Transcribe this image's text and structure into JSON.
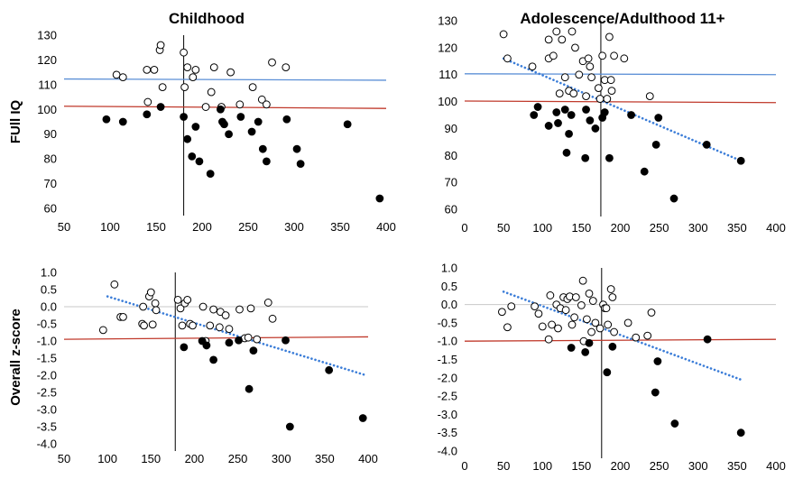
{
  "chart_data": [
    {
      "type": "scatter",
      "title": "Childhood",
      "xlabel": "",
      "ylabel": "FUll IQ",
      "xlim": [
        50,
        400
      ],
      "ylim": [
        60,
        130
      ],
      "xticks": [
        50,
        100,
        150,
        200,
        250,
        300,
        350,
        400
      ],
      "yticks": [
        60,
        70,
        80,
        90,
        100,
        110,
        120,
        130
      ],
      "vline_x": 180,
      "ref_lines": [
        {
          "color": "#5b8fd6",
          "x": [
            50,
            400
          ],
          "y": [
            112.3,
            111.8
          ]
        },
        {
          "color": "#c0392b",
          "x": [
            50,
            400
          ],
          "y": [
            101.3,
            100.4
          ]
        }
      ],
      "series": [
        {
          "marker": "open",
          "points": [
            [
              107,
              114
            ],
            [
              114,
              113
            ],
            [
              140,
              116
            ],
            [
              148,
              116
            ],
            [
              154,
              124
            ],
            [
              155,
              126
            ],
            [
              157,
              109
            ],
            [
              141,
              103
            ],
            [
              180,
              123
            ],
            [
              181,
              109
            ],
            [
              184,
              117
            ],
            [
              190,
              113
            ],
            [
              193,
              116
            ],
            [
              204,
              101
            ],
            [
              210,
              107
            ],
            [
              213,
              117
            ],
            [
              221,
              101
            ],
            [
              231,
              115
            ],
            [
              241,
              102
            ],
            [
              255,
              109
            ],
            [
              265,
              104
            ],
            [
              270,
              102
            ],
            [
              276,
              119
            ],
            [
              291,
              117
            ]
          ]
        },
        {
          "marker": "filled",
          "points": [
            [
              96,
              96
            ],
            [
              114,
              95
            ],
            [
              140,
              98
            ],
            [
              155,
              101
            ],
            [
              180,
              97
            ],
            [
              184,
              88
            ],
            [
              189,
              81
            ],
            [
              193,
              93
            ],
            [
              197,
              79
            ],
            [
              209,
              74
            ],
            [
              220,
              100
            ],
            [
              222,
              95
            ],
            [
              224,
              94
            ],
            [
              229,
              90
            ],
            [
              242,
              97
            ],
            [
              254,
              91
            ],
            [
              261,
              95
            ],
            [
              266,
              84
            ],
            [
              270,
              79
            ],
            [
              292,
              96
            ],
            [
              303,
              84
            ],
            [
              307,
              78
            ],
            [
              358,
              94
            ],
            [
              393,
              64
            ]
          ]
        }
      ]
    },
    {
      "type": "scatter",
      "title": "Adolescence/Adulthood 11+",
      "xlabel": "",
      "ylabel": "",
      "xlim": [
        0,
        400
      ],
      "ylim": [
        60,
        130
      ],
      "xticks": [
        0,
        50,
        100,
        150,
        200,
        250,
        300,
        350,
        400
      ],
      "yticks": [
        60,
        70,
        80,
        90,
        100,
        110,
        120,
        130
      ],
      "vline_x": 175,
      "ref_lines": [
        {
          "color": "#5b8fd6",
          "x": [
            0,
            400
          ],
          "y": [
            110.3,
            110.0
          ]
        },
        {
          "color": "#c0392b",
          "x": [
            0,
            400
          ],
          "y": [
            100.2,
            99.6
          ]
        },
        {
          "color": "#3b7dd8",
          "dotted": true,
          "x": [
            50,
            355
          ],
          "y": [
            116,
            78
          ]
        }
      ],
      "series": [
        {
          "marker": "open",
          "points": [
            [
              50,
              125
            ],
            [
              55,
              116
            ],
            [
              87,
              113
            ],
            [
              108,
              123
            ],
            [
              108,
              116
            ],
            [
              114,
              117
            ],
            [
              118,
              126
            ],
            [
              122,
              103
            ],
            [
              125,
              123
            ],
            [
              129,
              109
            ],
            [
              134,
              104
            ],
            [
              138,
              126
            ],
            [
              140,
              103
            ],
            [
              142,
              120
            ],
            [
              147,
              110
            ],
            [
              152,
              115
            ],
            [
              156,
              102
            ],
            [
              159,
              116
            ],
            [
              161,
              113
            ],
            [
              163,
              109
            ],
            [
              172,
              105
            ],
            [
              174,
              101
            ],
            [
              177,
              117
            ],
            [
              180,
              108
            ],
            [
              183,
              101
            ],
            [
              186,
              124
            ],
            [
              188,
              108
            ],
            [
              189,
              104
            ],
            [
              192,
              117
            ],
            [
              205,
              116
            ],
            [
              238,
              102
            ]
          ]
        },
        {
          "marker": "filled",
          "points": [
            [
              89,
              95
            ],
            [
              94,
              98
            ],
            [
              108,
              91
            ],
            [
              118,
              96
            ],
            [
              120,
              92
            ],
            [
              129,
              97
            ],
            [
              131,
              81
            ],
            [
              134,
              88
            ],
            [
              137,
              95
            ],
            [
              155,
              79
            ],
            [
              156,
              97
            ],
            [
              161,
              93
            ],
            [
              168,
              90
            ],
            [
              177,
              94
            ],
            [
              180,
              96
            ],
            [
              186,
              79
            ],
            [
              214,
              95
            ],
            [
              231,
              74
            ],
            [
              246,
              84
            ],
            [
              249,
              94
            ],
            [
              269,
              64
            ],
            [
              311,
              84
            ],
            [
              355,
              78
            ]
          ]
        }
      ]
    },
    {
      "type": "scatter",
      "title": "",
      "xlabel": "",
      "ylabel": "Overall z-score",
      "xlim": [
        50,
        400
      ],
      "ylim": [
        -4.0,
        1.0
      ],
      "xticks": [
        50,
        100,
        150,
        200,
        250,
        300,
        350,
        400
      ],
      "yticks": [
        "1.0",
        "0.5",
        "0.0",
        "-0.5",
        "-1.0",
        "-1.5",
        "-2.0",
        "-2.5",
        "-3.0",
        "-3.5",
        "-4.0"
      ],
      "vline_x": 178,
      "ref_lines": [
        {
          "color": "#c0392b",
          "x": [
            50,
            400
          ],
          "y": [
            -0.95,
            -0.88
          ]
        },
        {
          "color": "#3b7dd8",
          "dotted": true,
          "x": [
            100,
            395
          ],
          "y": [
            0.3,
            -1.98
          ]
        }
      ],
      "series": [
        {
          "marker": "open",
          "points": [
            [
              95,
              -0.68
            ],
            [
              108,
              0.65
            ],
            [
              115,
              -0.3
            ],
            [
              118,
              -0.3
            ],
            [
              141,
              0.0
            ],
            [
              140,
              -0.5
            ],
            [
              142,
              -0.55
            ],
            [
              148,
              0.3
            ],
            [
              150,
              0.42
            ],
            [
              152,
              -0.52
            ],
            [
              155,
              0.1
            ],
            [
              156,
              -0.1
            ],
            [
              181,
              0.2
            ],
            [
              184,
              -0.05
            ],
            [
              186,
              -0.55
            ],
            [
              189,
              0.1
            ],
            [
              192,
              0.2
            ],
            [
              195,
              -0.5
            ],
            [
              198,
              -0.55
            ],
            [
              210,
              0.0
            ],
            [
              213,
              -1.0
            ],
            [
              218,
              -0.55
            ],
            [
              222,
              -0.08
            ],
            [
              229,
              -0.6
            ],
            [
              230,
              -0.15
            ],
            [
              236,
              -0.25
            ],
            [
              240,
              -0.65
            ],
            [
              252,
              -0.08
            ],
            [
              258,
              -0.92
            ],
            [
              262,
              -0.9
            ],
            [
              265,
              -0.05
            ],
            [
              272,
              -0.95
            ],
            [
              285,
              0.12
            ],
            [
              290,
              -0.35
            ]
          ]
        },
        {
          "marker": "filled",
          "points": [
            [
              188,
              -1.18
            ],
            [
              209,
              -1.0
            ],
            [
              214,
              -1.13
            ],
            [
              222,
              -1.55
            ],
            [
              240,
              -1.05
            ],
            [
              251,
              -0.98
            ],
            [
              263,
              -2.4
            ],
            [
              268,
              -1.28
            ],
            [
              305,
              -0.98
            ],
            [
              310,
              -3.5
            ],
            [
              355,
              -1.85
            ],
            [
              394,
              -3.25
            ]
          ]
        }
      ]
    },
    {
      "type": "scatter",
      "title": "",
      "xlabel": "",
      "ylabel": "",
      "xlim": [
        0,
        400
      ],
      "ylim": [
        -4.0,
        1.0
      ],
      "xticks": [
        0,
        50,
        100,
        150,
        200,
        250,
        300,
        350,
        400
      ],
      "yticks": [
        "1.0",
        "0.5",
        "0.0",
        "-0.5",
        "-1.0",
        "-1.5",
        "-2.0",
        "-2.5",
        "-3.0",
        "-3.5",
        "-4.0"
      ],
      "vline_x": 176,
      "ref_lines": [
        {
          "color": "#c0392b",
          "x": [
            0,
            400
          ],
          "y": [
            -1.0,
            -0.95
          ]
        },
        {
          "color": "#3b7dd8",
          "dotted": true,
          "x": [
            50,
            355
          ],
          "y": [
            0.35,
            -2.05
          ]
        }
      ],
      "series": [
        {
          "marker": "open",
          "points": [
            [
              48,
              -0.2
            ],
            [
              55,
              -0.62
            ],
            [
              60,
              -0.05
            ],
            [
              90,
              -0.05
            ],
            [
              95,
              -0.25
            ],
            [
              100,
              -0.6
            ],
            [
              108,
              -0.95
            ],
            [
              110,
              0.25
            ],
            [
              112,
              -0.55
            ],
            [
              118,
              0.0
            ],
            [
              120,
              -0.65
            ],
            [
              123,
              -0.1
            ],
            [
              127,
              0.2
            ],
            [
              130,
              -0.15
            ],
            [
              132,
              0.15
            ],
            [
              135,
              0.22
            ],
            [
              138,
              -0.55
            ],
            [
              141,
              -0.35
            ],
            [
              143,
              0.2
            ],
            [
              150,
              -0.02
            ],
            [
              152,
              0.65
            ],
            [
              153,
              -1.0
            ],
            [
              157,
              -0.4
            ],
            [
              160,
              0.3
            ],
            [
              163,
              -0.75
            ],
            [
              165,
              0.1
            ],
            [
              168,
              -0.5
            ],
            [
              174,
              -0.65
            ],
            [
              178,
              0.0
            ],
            [
              180,
              -0.1
            ],
            [
              182,
              -0.1
            ],
            [
              184,
              -0.55
            ],
            [
              188,
              0.42
            ],
            [
              190,
              0.2
            ],
            [
              192,
              -0.75
            ],
            [
              210,
              -0.5
            ],
            [
              220,
              -0.9
            ],
            [
              235,
              -0.85
            ],
            [
              240,
              -0.22
            ]
          ]
        },
        {
          "marker": "filled",
          "points": [
            [
              137,
              -1.18
            ],
            [
              155,
              -1.3
            ],
            [
              160,
              -1.05
            ],
            [
              183,
              -1.85
            ],
            [
              190,
              -1.15
            ],
            [
              245,
              -2.4
            ],
            [
              248,
              -1.55
            ],
            [
              270,
              -3.25
            ],
            [
              312,
              -0.95
            ],
            [
              355,
              -3.5
            ]
          ]
        }
      ]
    }
  ]
}
